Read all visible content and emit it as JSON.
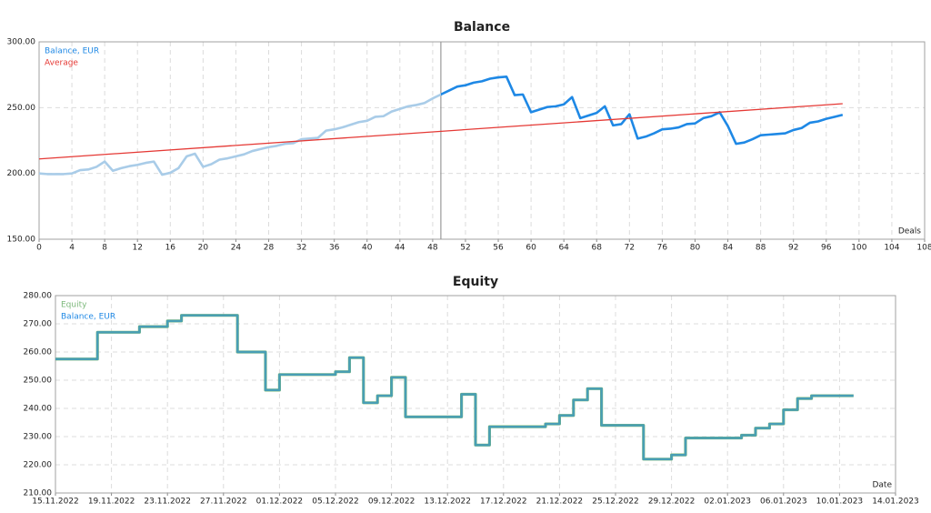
{
  "chart_data": [
    {
      "type": "line",
      "title": "Balance",
      "x_label": "Deals",
      "marker_x": 49,
      "xlim": [
        0,
        108
      ],
      "xticks": [
        0,
        4,
        8,
        12,
        16,
        20,
        24,
        28,
        32,
        36,
        40,
        44,
        48,
        52,
        56,
        60,
        64,
        68,
        72,
        76,
        80,
        84,
        88,
        92,
        96,
        100,
        104,
        108
      ],
      "ylim": [
        150,
        300
      ],
      "yticks": [
        {
          "value": 150,
          "label": "150.00"
        },
        {
          "value": 200,
          "label": "200.00"
        },
        {
          "value": 250,
          "label": "250.00"
        },
        {
          "value": 300,
          "label": "300.00"
        }
      ],
      "grid": true,
      "series": [
        {
          "name": "Balance, EUR",
          "color": "#1e88e5",
          "history_color": "#a9cce8",
          "x": [
            0,
            1,
            2,
            3,
            4,
            5,
            6,
            7,
            8,
            9,
            10,
            11,
            12,
            13,
            14,
            15,
            16,
            17,
            18,
            19,
            20,
            21,
            22,
            23,
            24,
            25,
            26,
            27,
            28,
            29,
            30,
            31,
            32,
            33,
            34,
            35,
            36,
            37,
            38,
            39,
            40,
            41,
            42,
            43,
            44,
            45,
            46,
            47,
            48,
            49,
            50,
            51,
            52,
            53,
            54,
            55,
            56,
            57,
            58,
            59,
            60,
            61,
            62,
            63,
            64,
            65,
            66,
            67,
            68,
            69,
            70,
            71,
            72,
            73,
            74,
            75,
            76,
            77,
            78,
            79,
            80,
            81,
            82,
            83,
            84,
            85,
            86,
            87,
            88,
            89,
            90,
            91,
            92,
            93,
            94,
            95,
            96,
            97,
            98
          ],
          "values": [
            200,
            199.5,
            199.5,
            199.5,
            200,
            202.5,
            203,
            205,
            209,
            202,
            204,
            205.5,
            206.5,
            208,
            209,
            199,
            200.5,
            204,
            213,
            215,
            205,
            207,
            210.5,
            211.5,
            213,
            214.5,
            217,
            218.5,
            220,
            221,
            222.5,
            223,
            226,
            226.5,
            227,
            232.5,
            233.5,
            235,
            237,
            239,
            240,
            243,
            243.5,
            247,
            249,
            251,
            252,
            253.5,
            257,
            260,
            263,
            266,
            267,
            269,
            270,
            272,
            273,
            273.5,
            259.5,
            260,
            246.5,
            248.5,
            250.5,
            251,
            252.5,
            258,
            242,
            244,
            246,
            251,
            236.5,
            237.5,
            245,
            226.5,
            228,
            230.5,
            233.5,
            234,
            235,
            237.5,
            238,
            242,
            243.5,
            246.5,
            236,
            222.5,
            223.5,
            226,
            229,
            229.5,
            230,
            230.5,
            233,
            234.5,
            238.5,
            239.5,
            241.5,
            243,
            244.5
          ]
        },
        {
          "name": "Average",
          "color": "#e53935",
          "x": [
            0,
            98
          ],
          "values": [
            211,
            253
          ]
        }
      ]
    },
    {
      "type": "step",
      "title": "Equity",
      "x_label": "Date",
      "xlim": [
        "15.11.2022",
        "14.01.2023"
      ],
      "xticks": [
        "15.11.2022",
        "19.11.2022",
        "23.11.2022",
        "27.11.2022",
        "01.12.2022",
        "05.12.2022",
        "09.12.2022",
        "13.12.2022",
        "17.12.2022",
        "21.12.2022",
        "25.12.2022",
        "29.12.2022",
        "02.01.2023",
        "06.01.2023",
        "10.01.2023",
        "14.01.2023"
      ],
      "ylim": [
        210,
        280
      ],
      "yticks": [
        {
          "value": 210,
          "label": "210.00"
        },
        {
          "value": 220,
          "label": "220.00"
        },
        {
          "value": 230,
          "label": "230.00"
        },
        {
          "value": 240,
          "label": "240.00"
        },
        {
          "value": 250,
          "label": "250.00"
        },
        {
          "value": 260,
          "label": "260.00"
        },
        {
          "value": 270,
          "label": "270.00"
        },
        {
          "value": 280,
          "label": "280.00"
        }
      ],
      "grid": true,
      "x": [
        "15.11.2022",
        "18.11.2022",
        "21.11.2022",
        "23.11.2022",
        "24.11.2022",
        "28.11.2022",
        "30.11.2022",
        "01.12.2022",
        "05.12.2022",
        "06.12.2022",
        "07.12.2022",
        "08.12.2022",
        "09.12.2022",
        "10.12.2022",
        "14.12.2022",
        "15.12.2022",
        "16.12.2022",
        "20.12.2022",
        "21.12.2022",
        "22.12.2022",
        "23.12.2022",
        "24.12.2022",
        "27.12.2022",
        "29.12.2022",
        "30.12.2022",
        "03.01.2023",
        "04.01.2023",
        "05.01.2023",
        "06.01.2023",
        "07.01.2023",
        "08.01.2023",
        "11.01.2023"
      ],
      "series": [
        {
          "name": "Equity",
          "color": "#7cb87a",
          "values": [
            257.5,
            267,
            269,
            271,
            273,
            260,
            246.5,
            252,
            253,
            258,
            242,
            244.5,
            251,
            237,
            245,
            227,
            233.5,
            234.5,
            237.5,
            243,
            247,
            234,
            222,
            223.5,
            229.5,
            230.5,
            233,
            234.5,
            239.5,
            243.5,
            244.5,
            244.5
          ]
        },
        {
          "name": "Balance, EUR",
          "color": "#1e88e5",
          "values": [
            257.5,
            267,
            269,
            271,
            273,
            260,
            246.5,
            252,
            253,
            258,
            242,
            244.5,
            251,
            237,
            245,
            227,
            233.5,
            234.5,
            237.5,
            243,
            247,
            234,
            222,
            223.5,
            229.5,
            230.5,
            233,
            234.5,
            239.5,
            243.5,
            244.5,
            244.5
          ]
        }
      ]
    }
  ]
}
